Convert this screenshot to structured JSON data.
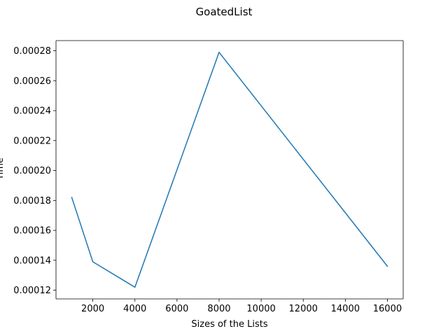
{
  "chart_data": {
    "type": "line",
    "title": "GoatedList",
    "xlabel": "Sizes of the Lists",
    "ylabel": "Time",
    "xlim": [
      250,
      16750
    ],
    "ylim": [
      0.0001142,
      0.0002868
    ],
    "xticks": [
      2000,
      4000,
      6000,
      8000,
      10000,
      12000,
      14000,
      16000
    ],
    "xtick_labels": [
      "2000",
      "4000",
      "6000",
      "8000",
      "10000",
      "12000",
      "14000",
      "16000"
    ],
    "yticks": [
      0.00012,
      0.00014,
      0.00016,
      0.00018,
      0.0002,
      0.00022,
      0.00024,
      0.00026,
      0.00028
    ],
    "ytick_labels": [
      "0.00012",
      "0.00014",
      "0.00016",
      "0.00018",
      "0.00020",
      "0.00022",
      "0.00024",
      "0.00026",
      "0.00028"
    ],
    "grid": false,
    "legend": null,
    "series": [
      {
        "color": "#1f77b4",
        "x": [
          1000,
          2000,
          4000,
          8000,
          16000
        ],
        "y": [
          0.000182,
          0.000139,
          0.000122,
          0.000279,
          0.000136
        ]
      }
    ]
  }
}
